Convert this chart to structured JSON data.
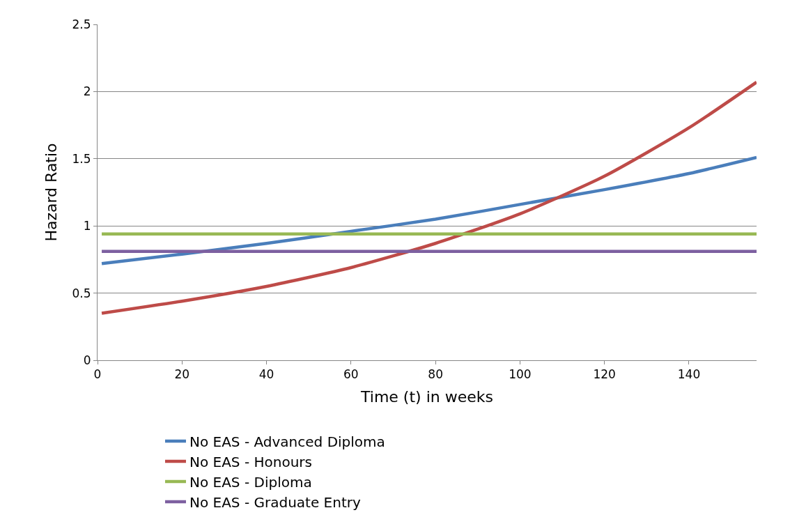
{
  "chart_data": {
    "type": "line",
    "xlabel": "Time (t) in weeks",
    "ylabel": "Hazard Ratio",
    "x": [
      1,
      20,
      40,
      60,
      80,
      100,
      120,
      140,
      156
    ],
    "xlim": [
      0,
      156
    ],
    "xticks": [
      0,
      20,
      40,
      60,
      80,
      100,
      120,
      140
    ],
    "ylim": [
      0,
      2.5
    ],
    "yticks": [
      0,
      0.5,
      1,
      1.5,
      2,
      2.5
    ],
    "grid": "y",
    "legend": "bottom",
    "marker": "none",
    "line_style": "solid",
    "series": [
      {
        "name": "No EAS - Advanced Diploma",
        "color": "#4a7ebb",
        "values": [
          0.72,
          0.79,
          0.87,
          0.96,
          1.05,
          1.16,
          1.27,
          1.39,
          1.51
        ]
      },
      {
        "name": "No EAS - Honours",
        "color": "#be4b48",
        "values": [
          0.35,
          0.44,
          0.55,
          0.69,
          0.87,
          1.09,
          1.37,
          1.73,
          2.07
        ]
      },
      {
        "name": "No EAS - Diploma",
        "color": "#98b954",
        "values": [
          0.94,
          0.94,
          0.94,
          0.94,
          0.94,
          0.94,
          0.94,
          0.94,
          0.94
        ]
      },
      {
        "name": "No EAS - Graduate Entry",
        "color": "#7d60a0",
        "values": [
          0.81,
          0.81,
          0.81,
          0.81,
          0.81,
          0.81,
          0.81,
          0.81,
          0.81
        ]
      }
    ]
  }
}
